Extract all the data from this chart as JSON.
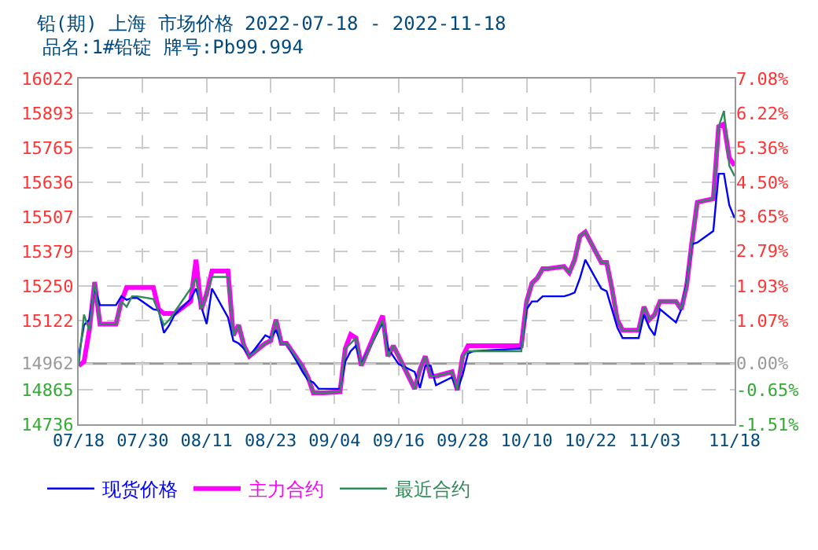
{
  "chart_data": {
    "type": "line",
    "title": "铅(期) 上海 市场价格 2022-07-18 - 2022-11-18",
    "subtitle": "品名:1#铅锭 牌号:Pb99.994",
    "x": [
      "2022-07-18",
      "2022-07-19",
      "2022-07-20",
      "2022-07-21",
      "2022-07-22",
      "2022-07-25",
      "2022-07-26",
      "2022-07-27",
      "2022-07-28",
      "2022-07-29",
      "2022-08-01",
      "2022-08-02",
      "2022-08-03",
      "2022-08-04",
      "2022-08-05",
      "2022-08-08",
      "2022-08-09",
      "2022-08-10",
      "2022-08-11",
      "2022-08-12",
      "2022-08-15",
      "2022-08-16",
      "2022-08-17",
      "2022-08-18",
      "2022-08-19",
      "2022-08-22",
      "2022-08-23",
      "2022-08-24",
      "2022-08-25",
      "2022-08-26",
      "2022-08-29",
      "2022-08-30",
      "2022-08-31",
      "2022-09-01",
      "2022-09-02",
      "2022-09-05",
      "2022-09-06",
      "2022-09-07",
      "2022-09-08",
      "2022-09-09",
      "2022-09-13",
      "2022-09-14",
      "2022-09-15",
      "2022-09-16",
      "2022-09-19",
      "2022-09-20",
      "2022-09-21",
      "2022-09-22",
      "2022-09-23",
      "2022-09-26",
      "2022-09-27",
      "2022-09-28",
      "2022-09-29",
      "2022-09-30",
      "2022-10-09",
      "2022-10-10",
      "2022-10-11",
      "2022-10-12",
      "2022-10-13",
      "2022-10-14",
      "2022-10-17",
      "2022-10-18",
      "2022-10-19",
      "2022-10-20",
      "2022-10-21",
      "2022-10-24",
      "2022-10-25",
      "2022-10-26",
      "2022-10-27",
      "2022-10-28",
      "2022-10-31",
      "2022-11-01",
      "2022-11-02",
      "2022-11-03",
      "2022-11-04",
      "2022-11-07",
      "2022-11-08",
      "2022-11-09",
      "2022-11-10",
      "2022-11-11",
      "2022-11-14",
      "2022-11-15",
      "2022-11-16",
      "2022-11-17",
      "2022-11-18"
    ],
    "series": [
      {
        "name": "现货价格",
        "color": "#0000ff",
        "values": [
          14989,
          15105,
          15125,
          15241,
          15179,
          15179,
          15212,
          15199,
          15206,
          15206,
          15164,
          15160,
          15076,
          15105,
          15144,
          15202,
          15241,
          15173,
          15109,
          15241,
          15134,
          15047,
          15037,
          15018,
          14989,
          15067,
          15057,
          15086,
          15037,
          15037,
          14931,
          14901,
          14892,
          14868,
          14868,
          14868,
          14969,
          15008,
          15028,
          14960,
          15115,
          15018,
          14989,
          14960,
          14931,
          14871,
          14954,
          14954,
          14881,
          14911,
          14863,
          14920,
          14999,
          15008,
          15018,
          15164,
          15193,
          15193,
          15212,
          15212,
          15212,
          15218,
          15226,
          15280,
          15348,
          15241,
          15231,
          15164,
          15096,
          15057,
          15057,
          15144,
          15096,
          15067,
          15164,
          15115,
          15164,
          15261,
          15406,
          15412,
          15455,
          15668,
          15668,
          15551,
          15503
        ]
      },
      {
        "name": "主力合约",
        "color": "#ff00ff",
        "values": [
          14954,
          14969,
          15086,
          15265,
          15109,
          15109,
          15193,
          15245,
          15245,
          15245,
          15245,
          15164,
          15148,
          15148,
          15148,
          15193,
          15348,
          15164,
          15222,
          15306,
          15306,
          15067,
          15105,
          15028,
          14989,
          15037,
          15047,
          15125,
          15037,
          15037,
          14950,
          14911,
          14853,
          14853,
          14853,
          14857,
          15018,
          15070,
          15057,
          14954,
          15140,
          14989,
          15028,
          14989,
          14868,
          14940,
          14989,
          14915,
          14915,
          14931,
          14863,
          14989,
          15028,
          15028,
          15028,
          15193,
          15261,
          15280,
          15315,
          15315,
          15323,
          15300,
          15348,
          15436,
          15451,
          15338,
          15338,
          15241,
          15125,
          15086,
          15086,
          15173,
          15125,
          15144,
          15193,
          15193,
          15164,
          15251,
          15416,
          15562,
          15575,
          15843,
          15853,
          15727,
          15698
        ]
      },
      {
        "name": "最近合约",
        "color": "#2e8b57",
        "values": [
          14954,
          15144,
          15086,
          15265,
          15109,
          15109,
          15193,
          15173,
          15212,
          15212,
          15202,
          15154,
          15105,
          15125,
          15154,
          15241,
          15280,
          15164,
          15222,
          15284,
          15284,
          15067,
          15105,
          15028,
          14989,
          15037,
          15047,
          15125,
          15037,
          15037,
          14950,
          14911,
          14853,
          14853,
          14853,
          14857,
          15018,
          15037,
          15057,
          14954,
          15125,
          14989,
          15028,
          14989,
          14868,
          14940,
          14989,
          14915,
          14915,
          14931,
          14863,
          14989,
          15008,
          15008,
          15008,
          15193,
          15261,
          15280,
          15315,
          15315,
          15323,
          15300,
          15348,
          15436,
          15451,
          15338,
          15338,
          15241,
          15125,
          15086,
          15086,
          15173,
          15125,
          15144,
          15193,
          15193,
          15164,
          15251,
          15416,
          15562,
          15575,
          15843,
          15902,
          15698,
          15659
        ]
      }
    ],
    "xlim": [
      "2022-07-18",
      "2022-11-18"
    ],
    "xticks": [
      {
        "value": "2022-07-18",
        "label": "07/18"
      },
      {
        "value": "2022-07-30",
        "label": "07/30"
      },
      {
        "value": "2022-08-11",
        "label": "08/11"
      },
      {
        "value": "2022-08-23",
        "label": "08/23"
      },
      {
        "value": "2022-09-04",
        "label": "09/04"
      },
      {
        "value": "2022-09-16",
        "label": "09/16"
      },
      {
        "value": "2022-09-28",
        "label": "09/28"
      },
      {
        "value": "2022-10-10",
        "label": "10/10"
      },
      {
        "value": "2022-10-22",
        "label": "10/22"
      },
      {
        "value": "2022-11-03",
        "label": "11/03"
      },
      {
        "value": "2022-11-18",
        "label": "11/18"
      }
    ],
    "ylim": [
      14736,
      16022
    ],
    "yticks": [
      14736,
      14865,
      14962,
      15122,
      15250,
      15379,
      15507,
      15636,
      15765,
      15893,
      16022
    ],
    "y2lim": [
      -1.51,
      7.08
    ],
    "y2ticks": [
      {
        "value": -1.51,
        "label": "-1.51%"
      },
      {
        "value": -0.65,
        "label": "-0.65%"
      },
      {
        "value": 0,
        "label": "0.00%"
      },
      {
        "value": 1.07,
        "label": "1.07%"
      },
      {
        "value": 1.93,
        "label": "1.93%"
      },
      {
        "value": 2.79,
        "label": "2.79%"
      },
      {
        "value": 3.65,
        "label": "3.65%"
      },
      {
        "value": 4.5,
        "label": "4.50%"
      },
      {
        "value": 5.36,
        "label": "5.36%"
      },
      {
        "value": 6.22,
        "label": "6.22%"
      },
      {
        "value": 7.08,
        "label": "7.08%"
      }
    ],
    "ref_lines": [
      {
        "axis": "y",
        "value": 14962,
        "label": null,
        "color": "#999999",
        "line_style": "solid"
      }
    ],
    "grid": true,
    "legend": "bottom",
    "marker": "none",
    "line_style": "solid"
  }
}
